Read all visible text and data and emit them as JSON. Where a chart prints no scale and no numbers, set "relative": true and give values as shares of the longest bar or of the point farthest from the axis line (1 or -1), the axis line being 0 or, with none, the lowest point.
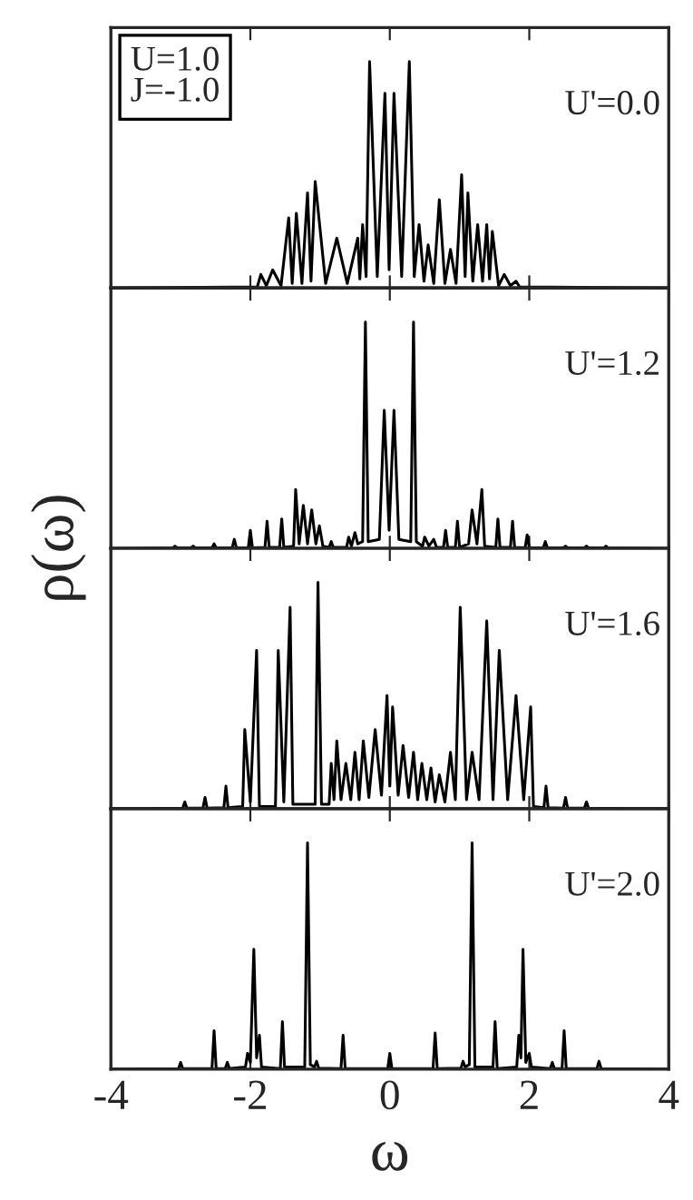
{
  "chart_data": [
    {
      "type": "line",
      "relative": true,
      "xlim": [
        -4,
        4
      ],
      "xticks": [
        -4,
        -2,
        0,
        2,
        4
      ],
      "tick_labels": false,
      "annotations": [
        "U=1.0\nJ=-1.0",
        "U'=0.0"
      ],
      "series": [
        {
          "color": "#000000",
          "x": [
            -4,
            -1.9,
            -1.85,
            -1.77,
            -1.68,
            -1.56,
            -1.45,
            -1.4,
            -1.34,
            -1.26,
            -1.18,
            -1.13,
            -1.07,
            -0.92,
            -0.76,
            -0.61,
            -0.46,
            -0.43,
            -0.39,
            -0.34,
            -0.29,
            -0.18,
            -0.07,
            -0.01,
            0.06,
            0.17,
            0.28,
            0.35,
            0.42,
            0.49,
            0.55,
            0.63,
            0.71,
            0.79,
            0.87,
            0.95,
            1.03,
            1.08,
            1.12,
            1.19,
            1.26,
            1.33,
            1.39,
            1.43,
            1.47,
            1.56,
            1.64,
            1.73,
            1.81,
            1.86,
            4
          ],
          "values": [
            0,
            0.005,
            0.06,
            0.01,
            0.08,
            0.01,
            0.31,
            0.02,
            0.33,
            0.02,
            0.42,
            0.03,
            0.47,
            0.02,
            0.22,
            0.02,
            0.22,
            0.04,
            0.28,
            0.05,
            1.0,
            0.05,
            0.86,
            0.08,
            0.86,
            0.05,
            1.0,
            0.05,
            0.28,
            0.03,
            0.19,
            0.02,
            0.39,
            0.02,
            0.17,
            0.02,
            0.5,
            0.05,
            0.42,
            0.03,
            0.28,
            0.03,
            0.28,
            0.04,
            0.25,
            0.01,
            0.06,
            0.01,
            0.03,
            0.005,
            0
          ]
        }
      ]
    },
    {
      "type": "line",
      "relative": true,
      "xlim": [
        -4,
        4
      ],
      "xticks": [
        -4,
        -2,
        0,
        2,
        4
      ],
      "tick_labels": false,
      "ylabel": "ρ(ω)",
      "annotations": [
        "U'=1.2"
      ],
      "series": [
        {
          "color": "#000000",
          "x": [
            -4,
            -3.11,
            -3.08,
            -3.05,
            -2.85,
            -2.82,
            -2.79,
            -2.55,
            -2.52,
            -2.49,
            -2.26,
            -2.23,
            -2.2,
            -2.03,
            -2.0,
            -1.97,
            -1.79,
            -1.76,
            -1.73,
            -1.58,
            -1.55,
            -1.52,
            -1.38,
            -1.35,
            -1.3,
            -1.24,
            -1.18,
            -1.12,
            -1.06,
            -1.01,
            -0.96,
            -0.87,
            -0.84,
            -0.81,
            -0.62,
            -0.59,
            -0.55,
            -0.5,
            -0.46,
            -0.39,
            -0.35,
            -0.31,
            -0.15,
            -0.08,
            -0.01,
            0.06,
            0.13,
            0.3,
            0.34,
            0.38,
            0.47,
            0.5,
            0.56,
            0.63,
            0.67,
            0.77,
            0.8,
            0.83,
            0.94,
            0.97,
            1.0,
            1.13,
            1.18,
            1.25,
            1.32,
            1.36,
            1.52,
            1.55,
            1.58,
            1.73,
            1.76,
            1.79,
            1.94,
            1.97,
            2.0,
            2.2,
            2.23,
            2.26,
            2.49,
            2.52,
            2.55,
            2.79,
            2.82,
            2.85,
            3.07,
            3.1,
            3.13,
            4
          ],
          "values": [
            0,
            0.003,
            0.01,
            0.003,
            0.003,
            0.01,
            0.003,
            0.003,
            0.02,
            0.003,
            0.003,
            0.04,
            0.003,
            0.003,
            0.08,
            0.003,
            0.005,
            0.12,
            0.005,
            0.005,
            0.13,
            0.005,
            0.01,
            0.26,
            0.02,
            0.19,
            0.02,
            0.17,
            0.02,
            0.1,
            0.01,
            0.005,
            0.03,
            0.005,
            0.005,
            0.05,
            0.01,
            0.07,
            0.02,
            0.03,
            1.0,
            0.03,
            0.04,
            0.61,
            0.08,
            0.61,
            0.04,
            0.03,
            1.0,
            0.03,
            0.01,
            0.05,
            0.01,
            0.04,
            0.005,
            0.005,
            0.08,
            0.005,
            0.005,
            0.12,
            0.005,
            0.02,
            0.17,
            0.02,
            0.26,
            0.01,
            0.005,
            0.13,
            0.005,
            0.005,
            0.12,
            0.005,
            0.003,
            0.06,
            0.003,
            0.003,
            0.03,
            0.003,
            0.003,
            0.01,
            0.003,
            0.003,
            0.01,
            0.003,
            0.003,
            0.01,
            0.003,
            0
          ]
        }
      ]
    },
    {
      "type": "line",
      "relative": true,
      "xlim": [
        -4,
        4
      ],
      "xticks": [
        -4,
        -2,
        0,
        2,
        4
      ],
      "tick_labels": false,
      "annotations": [
        "U'=1.6"
      ],
      "series": [
        {
          "color": "#000000",
          "x": [
            -4,
            -2.97,
            -2.94,
            -2.91,
            -2.68,
            -2.65,
            -2.62,
            -2.38,
            -2.35,
            -2.32,
            -2.11,
            -2.08,
            -2.0,
            -1.91,
            -1.87,
            -1.64,
            -1.6,
            -1.52,
            -1.43,
            -1.39,
            -1.07,
            -1.03,
            -0.98,
            -0.87,
            -0.84,
            -0.8,
            -0.76,
            -0.7,
            -0.63,
            -0.56,
            -0.5,
            -0.44,
            -0.38,
            -0.3,
            -0.21,
            -0.12,
            -0.04,
            0,
            0.04,
            0.12,
            0.19,
            0.27,
            0.34,
            0.4,
            0.46,
            0.53,
            0.59,
            0.65,
            0.71,
            0.79,
            0.87,
            0.94,
            1.01,
            1.1,
            1.18,
            1.28,
            1.39,
            1.48,
            1.57,
            1.69,
            1.81,
            1.92,
            2.02,
            2.06,
            2.21,
            2.24,
            2.27,
            2.49,
            2.52,
            2.55,
            2.79,
            2.82,
            2.85,
            4
          ],
          "values": [
            0,
            0.003,
            0.03,
            0.003,
            0.003,
            0.05,
            0.003,
            0.005,
            0.1,
            0.005,
            0.01,
            0.35,
            0.03,
            0.7,
            0.01,
            0.01,
            0.7,
            0.03,
            0.89,
            0.02,
            0.02,
            1.0,
            0.02,
            0.02,
            0.2,
            0.04,
            0.3,
            0.04,
            0.2,
            0.04,
            0.25,
            0.04,
            0.3,
            0.05,
            0.35,
            0.06,
            0.5,
            0.1,
            0.45,
            0.06,
            0.28,
            0.05,
            0.25,
            0.04,
            0.2,
            0.04,
            0.18,
            0.03,
            0.15,
            0.03,
            0.25,
            0.04,
            0.89,
            0.04,
            0.25,
            0.04,
            0.83,
            0.04,
            0.7,
            0.04,
            0.5,
            0.04,
            0.45,
            0.01,
            0.005,
            0.1,
            0.005,
            0.003,
            0.05,
            0.003,
            0.003,
            0.03,
            0.003,
            0
          ]
        }
      ]
    },
    {
      "type": "line",
      "relative": true,
      "xlim": [
        -4,
        4
      ],
      "xticks": [
        -4,
        -2,
        0,
        2,
        4
      ],
      "tick_labels": "x",
      "xlabel": "ω",
      "annotations": [
        "U'=2.0"
      ],
      "series": [
        {
          "color": "#000000",
          "x": [
            -4,
            -3.03,
            -3.0,
            -2.97,
            -2.55,
            -2.52,
            -2.49,
            -2.36,
            -2.33,
            -2.3,
            -2.07,
            -2.04,
            -2.0,
            -1.95,
            -1.91,
            -1.87,
            -1.84,
            -1.57,
            -1.54,
            -1.51,
            -1.22,
            -1.18,
            -1.14,
            -1.08,
            -1.05,
            -1.02,
            -0.7,
            -0.67,
            -0.64,
            -0.03,
            0,
            0.03,
            0.62,
            0.65,
            0.68,
            1.02,
            1.05,
            1.08,
            1.14,
            1.18,
            1.22,
            1.48,
            1.51,
            1.54,
            1.82,
            1.85,
            1.88,
            1.91,
            1.95,
            2.0,
            2.03,
            2.3,
            2.33,
            2.36,
            2.47,
            2.5,
            2.53,
            2.97,
            3.0,
            3.03,
            4
          ],
          "values": [
            0,
            0.003,
            0.03,
            0.003,
            0.003,
            0.17,
            0.003,
            0.003,
            0.03,
            0.003,
            0.01,
            0.07,
            0.03,
            0.53,
            0.05,
            0.15,
            0.01,
            0.003,
            0.21,
            0.01,
            0.01,
            1.0,
            0.02,
            0.01,
            0.035,
            0.005,
            0.003,
            0.15,
            0.003,
            0.003,
            0.07,
            0.003,
            0.003,
            0.16,
            0.003,
            0.005,
            0.035,
            0.01,
            0.02,
            1.0,
            0.01,
            0.01,
            0.21,
            0.003,
            0.01,
            0.15,
            0.05,
            0.53,
            0.03,
            0.07,
            0.01,
            0.003,
            0.03,
            0.003,
            0.003,
            0.17,
            0.003,
            0.003,
            0.035,
            0.003,
            0
          ]
        }
      ]
    }
  ]
}
